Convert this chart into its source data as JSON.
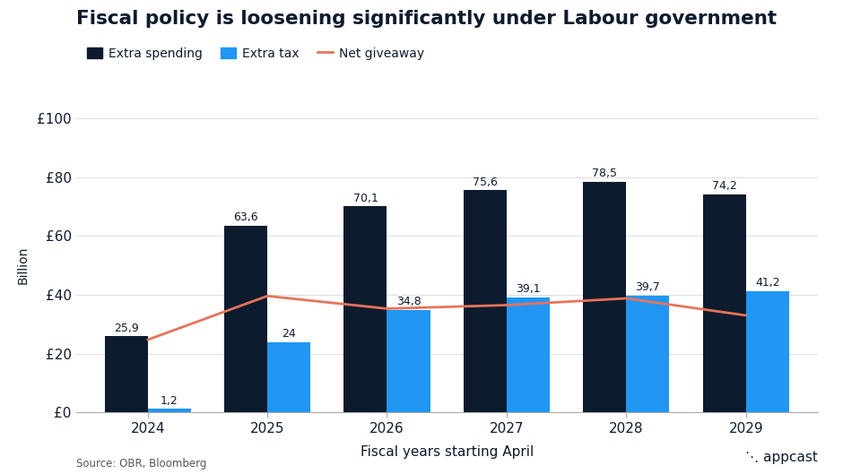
{
  "title": "Fiscal policy is loosening significantly under Labour government",
  "years": [
    2024,
    2025,
    2026,
    2027,
    2028,
    2029
  ],
  "extra_spending": [
    25.9,
    63.6,
    70.1,
    75.6,
    78.5,
    74.2
  ],
  "extra_tax": [
    1.2,
    24.0,
    34.8,
    39.1,
    39.7,
    41.2
  ],
  "net_giveaway": [
    24.7,
    39.6,
    35.3,
    36.5,
    38.8,
    33.0
  ],
  "bar_width": 0.36,
  "dark_navy": "#0d1b2e",
  "blue": "#2196f3",
  "salmon": "#e8735a",
  "ylabel": "Billion",
  "xlabel": "Fiscal years starting April",
  "ytick_labels": [
    "£0",
    "£20",
    "£40",
    "£60",
    "£80",
    "£100"
  ],
  "ytick_values": [
    0,
    20,
    40,
    60,
    80,
    100
  ],
  "ylim": [
    0,
    100
  ],
  "legend_spending": "Extra spending",
  "legend_tax": "Extra tax",
  "legend_net": "Net giveaway",
  "source_text": "Source: OBR, Bloomberg",
  "title_color": "#0d1b2e",
  "axis_color": "#0d1b2e",
  "text_color": "#0d1b2e",
  "background_color": "#ffffff"
}
